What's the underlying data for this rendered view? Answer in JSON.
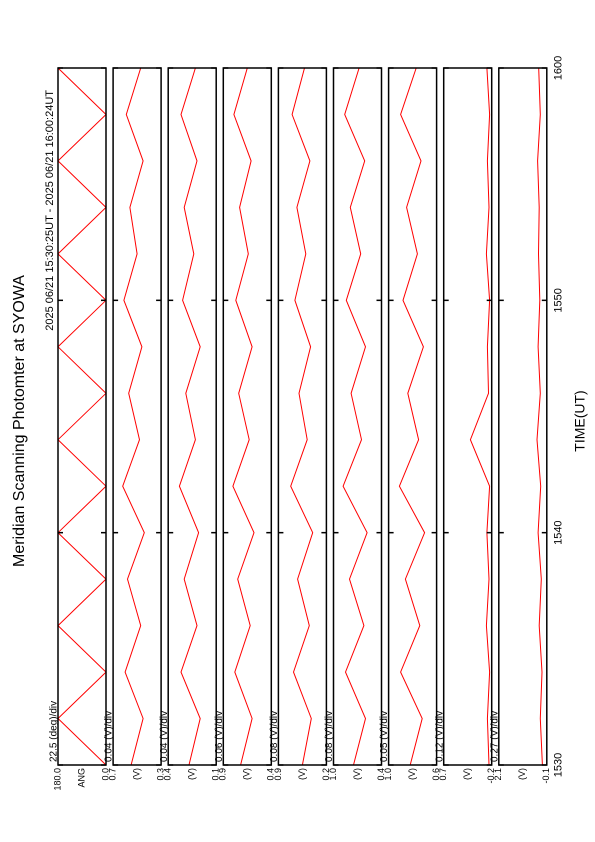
{
  "chart_data": [
    {
      "type": "line",
      "title": "Meridian Scanning Photomter at SYOWA",
      "subtitle": "2025 06/21 15:30:25UT - 2025 06/21 16:00:24UT",
      "xlabel": "TIME(UT)",
      "xlim": [
        0,
        30
      ],
      "xticks": [
        {
          "value": 0,
          "label": "1530"
        },
        {
          "value": 10,
          "label": "1540"
        },
        {
          "value": 20,
          "label": "1550"
        },
        {
          "value": 30,
          "label": "1600"
        }
      ],
      "label": "ANG",
      "annotation": "22.5 (deg)/div",
      "color": "#ff0000",
      "ylim": [
        0,
        180
      ],
      "yticks": [
        {
          "value": 0,
          "label": "0.0"
        },
        {
          "value": 180,
          "label": "180.0"
        }
      ],
      "x": [
        0,
        2,
        4,
        6,
        8,
        10,
        12,
        14,
        16,
        18,
        20,
        22,
        24,
        26,
        28,
        30
      ],
      "values": [
        0,
        180,
        0,
        180,
        0,
        180,
        0,
        180,
        0,
        180,
        0,
        180,
        0,
        180,
        0,
        180
      ]
    },
    {
      "type": "line",
      "label": "(V)",
      "annotation": "0.04 (V)/div",
      "color": "#ff0000",
      "ylim": [
        0.3,
        0.7
      ],
      "yticks": [
        0.3,
        0.7
      ],
      "x": [
        0,
        2,
        4,
        6,
        8,
        10,
        12,
        14,
        16,
        18,
        20,
        22,
        24,
        26,
        28,
        30
      ],
      "values": [
        0.55,
        0.45,
        0.6,
        0.47,
        0.58,
        0.44,
        0.62,
        0.48,
        0.57,
        0.46,
        0.61,
        0.5,
        0.56,
        0.45,
        0.59,
        0.47
      ]
    },
    {
      "type": "line",
      "label": "(V)",
      "annotation": "0.04 (V)/div",
      "color": "#ff0000",
      "ylim": [
        0.1,
        0.4
      ],
      "yticks": [
        0.1,
        0.4
      ],
      "x": [
        0,
        2,
        4,
        6,
        8,
        10,
        12,
        14,
        16,
        18,
        20,
        22,
        24,
        26,
        28,
        30
      ],
      "values": [
        0.27,
        0.2,
        0.32,
        0.22,
        0.3,
        0.21,
        0.33,
        0.23,
        0.29,
        0.2,
        0.31,
        0.24,
        0.3,
        0.22,
        0.32,
        0.23
      ]
    },
    {
      "type": "line",
      "label": "(V)",
      "annotation": "0.06 (V)/div",
      "color": "#ff0000",
      "ylim": [
        0.4,
        0.9
      ],
      "yticks": [
        0.4,
        0.9
      ],
      "x": [
        0,
        2,
        4,
        6,
        8,
        10,
        12,
        14,
        16,
        18,
        20,
        22,
        24,
        26,
        28,
        30
      ],
      "values": [
        0.72,
        0.6,
        0.78,
        0.62,
        0.75,
        0.58,
        0.8,
        0.63,
        0.74,
        0.6,
        0.77,
        0.64,
        0.73,
        0.61,
        0.79,
        0.65
      ]
    },
    {
      "type": "line",
      "label": "(V)",
      "annotation": "0.08 (V)/div",
      "color": "#ff0000",
      "ylim": [
        0.2,
        0.9
      ],
      "yticks": [
        0.2,
        0.9
      ],
      "x": [
        0,
        2,
        4,
        6,
        8,
        10,
        12,
        14,
        16,
        18,
        20,
        22,
        24,
        26,
        28,
        30
      ],
      "values": [
        0.55,
        0.42,
        0.68,
        0.45,
        0.62,
        0.4,
        0.72,
        0.48,
        0.6,
        0.43,
        0.66,
        0.5,
        0.63,
        0.44,
        0.7,
        0.52
      ]
    },
    {
      "type": "line",
      "label": "(V)",
      "annotation": "0.08 (V)/div",
      "color": "#ff0000",
      "ylim": [
        0.4,
        1.0
      ],
      "yticks": [
        0.4,
        {
          "value": 1.0,
          "label": "1.0"
        }
      ],
      "x": [
        0,
        2,
        4,
        6,
        8,
        10,
        12,
        14,
        16,
        18,
        20,
        22,
        24,
        26,
        28,
        30
      ],
      "values": [
        0.75,
        0.6,
        0.85,
        0.62,
        0.8,
        0.58,
        0.88,
        0.65,
        0.78,
        0.6,
        0.84,
        0.66,
        0.79,
        0.61,
        0.86,
        0.68
      ]
    },
    {
      "type": "line",
      "label": "(V)",
      "annotation": "0.05 (V)/div",
      "color": "#ff0000",
      "ylim": [
        0.6,
        1.0
      ],
      "yticks": [
        0.6,
        {
          "value": 1.0,
          "label": "1.0"
        }
      ],
      "x": [
        0,
        2,
        4,
        6,
        8,
        10,
        12,
        14,
        16,
        18,
        20,
        22,
        24,
        26,
        28,
        30
      ],
      "values": [
        0.82,
        0.72,
        0.9,
        0.74,
        0.86,
        0.7,
        0.91,
        0.75,
        0.84,
        0.71,
        0.88,
        0.76,
        0.85,
        0.73,
        0.9,
        0.77
      ]
    },
    {
      "type": "line",
      "label": "(V)",
      "annotation": "0.12 (V)/div",
      "color": "#ff0000",
      "ylim": [
        -0.2,
        0.7
      ],
      "yticks": [
        -0.2,
        0.7
      ],
      "x": [
        0,
        2,
        4,
        6,
        8,
        10,
        12,
        14,
        16,
        18,
        20,
        22,
        24,
        26,
        28,
        30
      ],
      "values": [
        -0.15,
        -0.12,
        -0.16,
        -0.1,
        -0.15,
        -0.11,
        -0.16,
        0.2,
        -0.14,
        -0.12,
        -0.16,
        -0.1,
        -0.15,
        -0.12,
        -0.16,
        -0.11
      ]
    },
    {
      "type": "line",
      "label": "(V)",
      "annotation": "0.27 (V)/div",
      "color": "#ff0000",
      "ylim": [
        -0.1,
        2.1
      ],
      "yticks": [
        -0.1,
        2.1
      ],
      "x": [
        0,
        2,
        4,
        6,
        8,
        10,
        12,
        14,
        16,
        18,
        20,
        22,
        24,
        26,
        28,
        30
      ],
      "values": [
        0.1,
        0.2,
        0.12,
        0.25,
        0.15,
        0.3,
        0.18,
        0.35,
        0.2,
        0.3,
        0.22,
        0.28,
        0.25,
        0.32,
        0.2,
        0.27
      ]
    }
  ]
}
